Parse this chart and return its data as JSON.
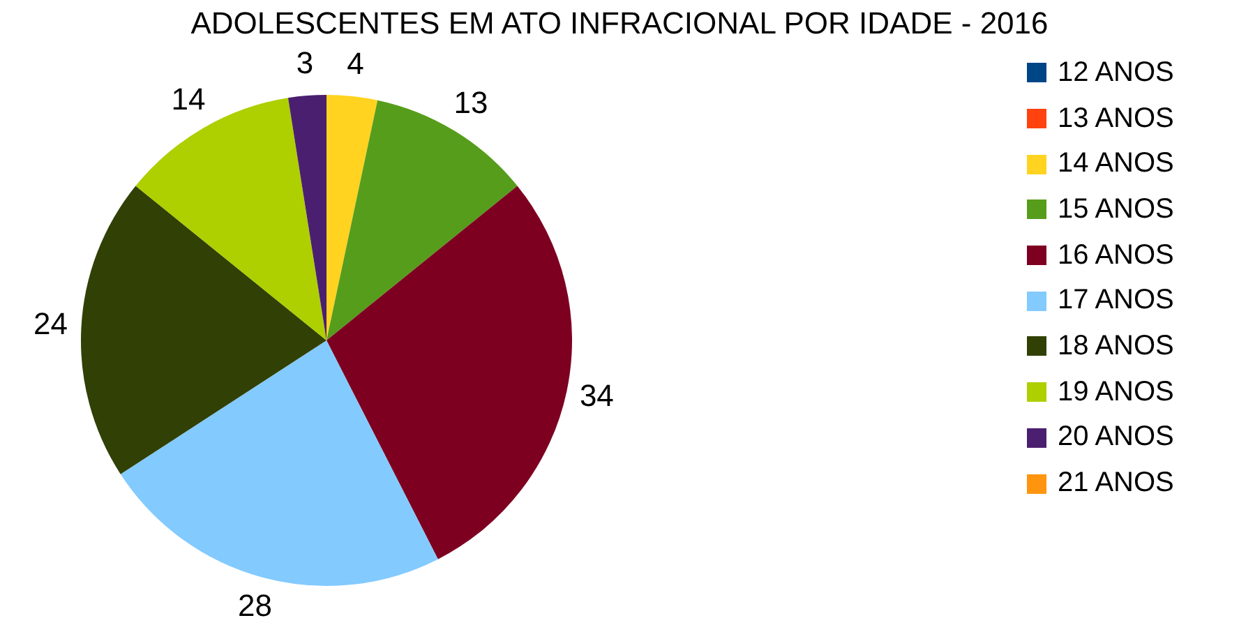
{
  "chart_data": {
    "type": "pie",
    "title": "ADOLESCENTES EM ATO INFRACIONAL POR IDADE - 2016",
    "categories": [
      "12 ANOS",
      "13 ANOS",
      "14 ANOS",
      "15 ANOS",
      "16 ANOS",
      "17 ANOS",
      "18 ANOS",
      "19 ANOS",
      "20 ANOS",
      "21 ANOS"
    ],
    "values": [
      0,
      0,
      4,
      13,
      34,
      28,
      24,
      14,
      3,
      0
    ],
    "colors": [
      "#004586",
      "#ff420e",
      "#ffd320",
      "#579d1c",
      "#7e0021",
      "#83caff",
      "#314004",
      "#aecf00",
      "#4b1f6f",
      "#ff950e"
    ],
    "value_labels": [
      null,
      null,
      "4",
      "13",
      "34",
      "28",
      "24",
      "14",
      "3",
      null
    ],
    "legend": "right"
  }
}
